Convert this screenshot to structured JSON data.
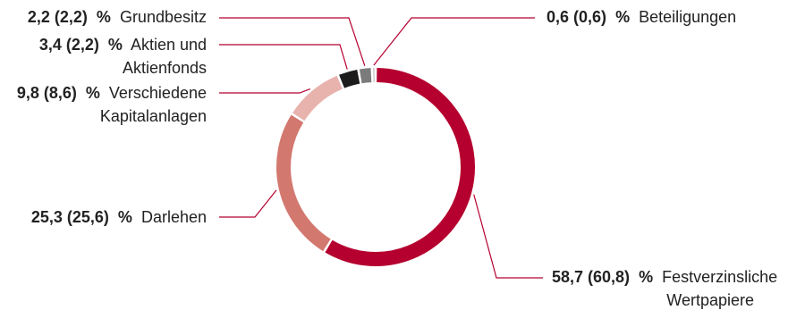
{
  "chart_data": {
    "type": "pie",
    "variant": "donut",
    "categories": [
      "Festverzinsliche Wertpapiere",
      "Darlehen",
      "Verschiedene Kapitalanlagen",
      "Aktien und Aktienfonds",
      "Grundbesitz",
      "Beteiligungen"
    ],
    "series": [
      {
        "values": [
          58.7,
          25.3,
          9.8,
          3.4,
          2.2,
          0.6
        ]
      }
    ],
    "previous_values": [
      60.8,
      25.6,
      8.6,
      2.2,
      2.2,
      0.6
    ],
    "colors": [
      "#b5002f",
      "#d3786f",
      "#e8b2ad",
      "#1c1c1c",
      "#7b7b7b",
      "#c9c9c9"
    ],
    "labels": [
      {
        "value": "58,7 (60,8)",
        "unit": "%",
        "lines": [
          "Festverzinsliche",
          "Wertpapiere"
        ]
      },
      {
        "value": "25,3 (25,6)",
        "unit": "%",
        "lines": [
          "Darlehen"
        ]
      },
      {
        "value": "9,8 (8,6)",
        "unit": "%",
        "lines": [
          "Verschiedene",
          "Kapitalanlagen"
        ]
      },
      {
        "value": "3,4 (2,2)",
        "unit": "%",
        "lines": [
          "Aktien und",
          "Aktienfonds"
        ]
      },
      {
        "value": "2,2 (2,2)",
        "unit": "%",
        "lines": [
          "Grundbesitz"
        ]
      },
      {
        "value": "0,6 (0,6)",
        "unit": "%",
        "lines": [
          "Beteiligungen"
        ]
      }
    ],
    "leader_color": "#b5002f"
  }
}
